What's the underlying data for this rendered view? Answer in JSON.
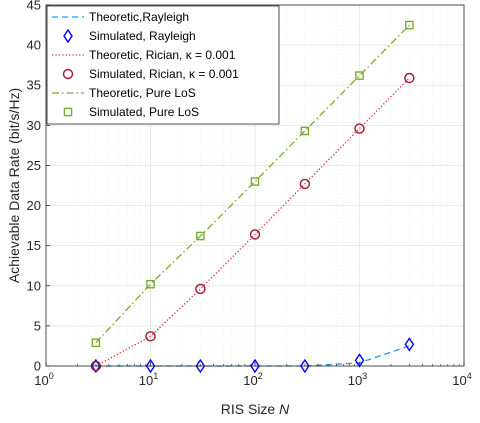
{
  "chart_data": {
    "type": "line",
    "title": "",
    "xlabel": "RIS Size",
    "xlabel_var": "N",
    "ylabel": "Achievable Data Rate (bit/s/Hz)",
    "x_scale": "log",
    "xlim": [
      1,
      10000
    ],
    "ylim": [
      0,
      45
    ],
    "grid": true,
    "legend_position": "top-left",
    "x_ticks": [
      {
        "value": 1,
        "base": "10",
        "exp": "0"
      },
      {
        "value": 10,
        "base": "10",
        "exp": "1"
      },
      {
        "value": 100,
        "base": "10",
        "exp": "2"
      },
      {
        "value": 1000,
        "base": "10",
        "exp": "3"
      },
      {
        "value": 10000,
        "base": "10",
        "exp": "4"
      }
    ],
    "y_ticks": [
      0,
      5,
      10,
      15,
      20,
      25,
      30,
      35,
      40,
      45
    ],
    "x": [
      3,
      10,
      30,
      100,
      300,
      1000,
      3000
    ],
    "series": [
      {
        "name": "Theoretic,Rayleigh",
        "style": "dashed-line",
        "color": "#1f9cf0",
        "values": [
          0.0,
          0.0,
          0.0,
          0.0,
          0.0,
          0.4,
          2.5
        ]
      },
      {
        "name": "Simulated, Rayleigh",
        "style": "diamond-marker",
        "color": "#0000ff",
        "values": [
          0.0,
          0.0,
          0.0,
          0.0,
          0.0,
          0.7,
          2.7
        ]
      },
      {
        "name": "Theoretic, Rician, κ = 0.001",
        "style": "dotted-line",
        "color": "#e02020",
        "values": [
          0.0,
          3.7,
          9.6,
          16.4,
          22.7,
          29.6,
          35.9
        ]
      },
      {
        "name": "Simulated, Rician, κ = 0.001",
        "style": "circle-marker",
        "color": "#a2142f",
        "values": [
          0.0,
          3.7,
          9.6,
          16.4,
          22.7,
          29.6,
          35.9
        ]
      },
      {
        "name": "Theoretic, Pure LoS",
        "style": "dashdot-line",
        "color": "#77ac30",
        "values": [
          2.9,
          10.2,
          16.2,
          23.0,
          29.3,
          36.2,
          42.5
        ]
      },
      {
        "name": "Simulated, Pure LoS",
        "style": "square-marker",
        "color": "#77ac30",
        "values": [
          2.9,
          10.2,
          16.2,
          23.0,
          29.3,
          36.2,
          42.5
        ]
      }
    ]
  }
}
